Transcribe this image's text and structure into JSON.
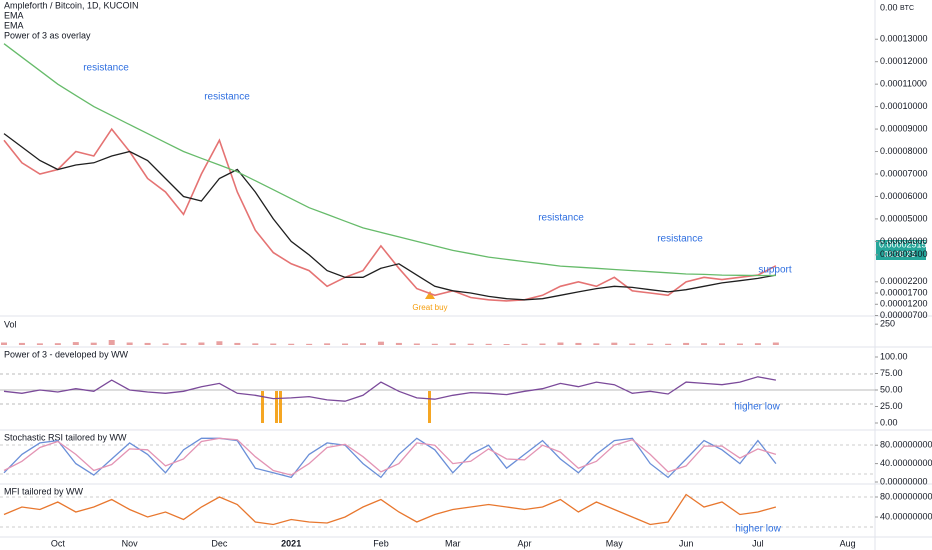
{
  "chart_data": [
    {
      "type": "line",
      "title": "Ampleforth / Bitcoin, 1D, KUCOIN",
      "top_label": "0.00",
      "axis_unit": "BTC",
      "indicator_labels": [
        "EMA",
        "EMA",
        "Power of 3 as overlay"
      ],
      "last_price_label": "0.00002915",
      "countdown": "02:28:23",
      "categories": [
        null,
        null,
        null,
        "Oct",
        null,
        null,
        null,
        "Nov",
        null,
        null,
        null,
        null,
        "Dec",
        null,
        null,
        null,
        "2021",
        null,
        null,
        null,
        null,
        "Feb",
        null,
        null,
        null,
        "Mar",
        null,
        null,
        null,
        "Apr",
        null,
        null,
        null,
        null,
        "May",
        null,
        null,
        null,
        "Jun",
        null,
        null,
        null,
        "Jul",
        null,
        null,
        null,
        null,
        "Aug"
      ],
      "ylim": [
        5e-06,
        0.000135
      ],
      "yticks": [
        {
          "value": 7e-06,
          "label": "0.00000700"
        },
        {
          "value": 1.2e-05,
          "label": "0.00001200"
        },
        {
          "value": 1.7e-05,
          "label": "0.00001700"
        },
        {
          "value": 2.2e-05,
          "label": "0.00002200"
        },
        {
          "value": 3.4e-05,
          "label": "0.00003400"
        },
        {
          "value": 4e-05,
          "label": "0.00004000"
        },
        {
          "value": 5e-05,
          "label": "0.00005000"
        },
        {
          "value": 6e-05,
          "label": "0.00006000"
        },
        {
          "value": 7e-05,
          "label": "0.00007000"
        },
        {
          "value": 8e-05,
          "label": "0.00008000"
        },
        {
          "value": 9e-05,
          "label": "0.00009000"
        },
        {
          "value": 0.0001,
          "label": "0.00010000"
        },
        {
          "value": 0.00011,
          "label": "0.00011000"
        },
        {
          "value": 0.00012,
          "label": "0.00012000"
        },
        {
          "value": 0.00013,
          "label": "0.00013000"
        }
      ],
      "series": [
        {
          "name": "Price",
          "color": "#e57373",
          "values": [
            8.5e-05,
            7.5e-05,
            7e-05,
            7.2e-05,
            8e-05,
            7.8e-05,
            9e-05,
            8e-05,
            6.8e-05,
            6.2e-05,
            5.2e-05,
            7e-05,
            8.5e-05,
            6.2e-05,
            4.5e-05,
            3.5e-05,
            3e-05,
            2.7e-05,
            2e-05,
            2.4e-05,
            2.7e-05,
            3.8e-05,
            2.8e-05,
            1.9e-05,
            1.6e-05,
            1.8e-05,
            1.5e-05,
            1.4e-05,
            1.35e-05,
            1.4e-05,
            1.6e-05,
            2e-05,
            2.2e-05,
            2e-05,
            2.4e-05,
            1.8e-05,
            1.7e-05,
            1.6e-05,
            2.2e-05,
            2.4e-05,
            2.3e-05,
            2.4e-05,
            2.5e-05,
            2.915e-05,
            null,
            null,
            null,
            null
          ]
        },
        {
          "name": "EMA",
          "color": "#1f1f1f",
          "values": [
            8.8e-05,
            8.2e-05,
            7.6e-05,
            7.2e-05,
            7.4e-05,
            7.5e-05,
            7.8e-05,
            8e-05,
            7.6e-05,
            6.8e-05,
            6e-05,
            5.8e-05,
            6.8e-05,
            7.2e-05,
            6.2e-05,
            5e-05,
            4e-05,
            3.4e-05,
            2.7e-05,
            2.4e-05,
            2.4e-05,
            2.8e-05,
            3e-05,
            2.5e-05,
            2e-05,
            1.8e-05,
            1.7e-05,
            1.55e-05,
            1.45e-05,
            1.4e-05,
            1.45e-05,
            1.6e-05,
            1.75e-05,
            1.9e-05,
            2e-05,
            1.95e-05,
            1.85e-05,
            1.75e-05,
            1.85e-05,
            2e-05,
            2.15e-05,
            2.25e-05,
            2.35e-05,
            2.5e-05,
            null,
            null,
            null,
            null
          ]
        },
        {
          "name": "EMA",
          "color": "#66bb6a",
          "values": [
            0.000128,
            0.000122,
            0.000116,
            0.00011,
            0.000105,
            0.0001,
            9.6e-05,
            9.2e-05,
            8.8e-05,
            8.4e-05,
            8e-05,
            7.7e-05,
            7.4e-05,
            7.1e-05,
            6.7e-05,
            6.3e-05,
            5.9e-05,
            5.5e-05,
            5.2e-05,
            4.9e-05,
            4.6e-05,
            4.4e-05,
            4.2e-05,
            4e-05,
            3.8e-05,
            3.6e-05,
            3.45e-05,
            3.3e-05,
            3.2e-05,
            3.1e-05,
            3e-05,
            2.9e-05,
            2.85e-05,
            2.8e-05,
            2.75e-05,
            2.7e-05,
            2.65e-05,
            2.6e-05,
            2.55e-05,
            2.53e-05,
            2.5e-05,
            2.49e-05,
            2.48e-05,
            2.48e-05,
            null,
            null,
            null,
            null
          ]
        }
      ],
      "annotations": [
        "resistance",
        "resistance",
        "resistance",
        "resistance",
        "support",
        "Great buy"
      ]
    },
    {
      "type": "bar",
      "title": "Vol",
      "ylim": [
        0,
        300
      ],
      "yticks": [
        250
      ],
      "color": "#e8a0a0",
      "values": [
        30,
        25,
        20,
        22,
        35,
        28,
        60,
        30,
        25,
        20,
        22,
        30,
        45,
        25,
        20,
        18,
        15,
        14,
        20,
        18,
        22,
        40,
        25,
        18,
        15,
        20,
        16,
        14,
        12,
        15,
        18,
        30,
        25,
        20,
        28,
        18,
        16,
        15,
        25,
        22,
        20,
        18,
        22,
        30,
        null,
        null,
        null,
        null
      ]
    },
    {
      "type": "line",
      "title": "Power of 3 - developed by WW",
      "ylim": [
        0,
        100
      ],
      "yticks": [
        {
          "value": 100,
          "label": "100.00"
        },
        {
          "value": 75,
          "label": "75.00"
        },
        {
          "value": 50,
          "label": "50.00"
        },
        {
          "value": 25,
          "label": "25.00"
        },
        {
          "value": 0,
          "label": "0.00"
        }
      ],
      "series": [
        {
          "name": "Power of 3",
          "color": "#7b4a9a",
          "values": [
            48,
            45,
            50,
            47,
            52,
            48,
            65,
            50,
            47,
            45,
            48,
            55,
            60,
            45,
            42,
            37,
            38,
            40,
            35,
            33,
            42,
            62,
            48,
            38,
            36,
            42,
            46,
            45,
            43,
            48,
            52,
            60,
            55,
            62,
            58,
            45,
            48,
            44,
            62,
            60,
            58,
            62,
            70,
            65,
            null,
            null,
            null,
            null
          ]
        }
      ],
      "annotations": [
        "higher low"
      ]
    },
    {
      "type": "line",
      "title": "Stochastic RSI tailored by WW",
      "ylim": [
        0,
        100
      ],
      "yticks": [
        {
          "value": 80,
          "label": "80.00000000"
        },
        {
          "value": 40,
          "label": "40.00000000"
        },
        {
          "value": 0,
          "label": "0.00000000"
        }
      ],
      "series": [
        {
          "name": "K",
          "color": "#6a8fd8",
          "values": [
            20,
            60,
            85,
            90,
            40,
            15,
            50,
            85,
            60,
            20,
            70,
            95,
            95,
            90,
            30,
            20,
            10,
            60,
            85,
            80,
            40,
            10,
            60,
            95,
            70,
            20,
            60,
            80,
            30,
            60,
            90,
            50,
            20,
            60,
            90,
            95,
            40,
            10,
            50,
            90,
            70,
            40,
            90,
            40,
            null,
            null,
            null,
            null
          ]
        },
        {
          "name": "D",
          "color": "#e394b4",
          "values": [
            25,
            45,
            75,
            88,
            60,
            25,
            38,
            72,
            70,
            35,
            50,
            88,
            95,
            92,
            55,
            25,
            15,
            40,
            75,
            82,
            55,
            22,
            40,
            85,
            80,
            40,
            45,
            72,
            50,
            48,
            80,
            65,
            30,
            45,
            80,
            92,
            60,
            22,
            35,
            78,
            78,
            52,
            72,
            60,
            null,
            null,
            null,
            null
          ]
        }
      ]
    },
    {
      "type": "line",
      "title": "MFI tailored by WW",
      "ylim": [
        0,
        100
      ],
      "yticks": [
        {
          "value": 80,
          "label": "80.00000000"
        },
        {
          "value": 40,
          "label": "40.00000000"
        }
      ],
      "series": [
        {
          "name": "MFI",
          "color": "#e8772e",
          "values": [
            45,
            60,
            55,
            70,
            50,
            60,
            75,
            55,
            40,
            50,
            35,
            60,
            80,
            65,
            30,
            25,
            35,
            30,
            28,
            40,
            60,
            75,
            50,
            30,
            45,
            55,
            60,
            65,
            60,
            55,
            60,
            75,
            50,
            70,
            55,
            40,
            25,
            30,
            85,
            60,
            70,
            45,
            50,
            60,
            null,
            null,
            null,
            null
          ]
        }
      ],
      "annotations": [
        "higher low"
      ]
    }
  ]
}
